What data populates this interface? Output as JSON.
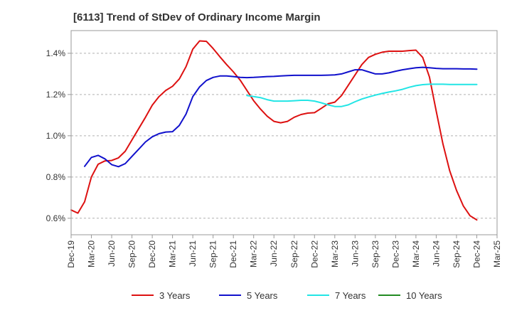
{
  "chart_data": {
    "type": "line",
    "title": "[6113]  Trend of StDev of Ordinary Income Margin",
    "xlabel": "",
    "ylabel": "",
    "x_tick_labels": [
      "Dec-19",
      "Mar-20",
      "Jun-20",
      "Sep-20",
      "Dec-20",
      "Mar-21",
      "Jun-21",
      "Sep-21",
      "Dec-21",
      "Mar-22",
      "Jun-22",
      "Sep-22",
      "Dec-22",
      "Mar-23",
      "Jun-23",
      "Sep-23",
      "Dec-23",
      "Mar-24",
      "Jun-24",
      "Sep-24",
      "Dec-24",
      "Mar-25"
    ],
    "y_tick_labels": [
      "0.6%",
      "0.8%",
      "1.0%",
      "1.2%",
      "1.4%"
    ],
    "y_ticks": [
      0.6,
      0.8,
      1.0,
      1.2,
      1.4
    ],
    "ylim": [
      0.52,
      1.51
    ],
    "grid": "horizontal-dashed",
    "legend_position": "bottom",
    "series": [
      {
        "name": "3 Years",
        "color": "#dd1111",
        "start_index": 0,
        "values": [
          0.64,
          0.625,
          0.68,
          0.8,
          0.862,
          0.878,
          0.88,
          0.893,
          0.925,
          0.98,
          1.035,
          1.09,
          1.148,
          1.19,
          1.22,
          1.24,
          1.275,
          1.335,
          1.42,
          1.46,
          1.458,
          1.423,
          1.383,
          1.345,
          1.31,
          1.27,
          1.22,
          1.17,
          1.13,
          1.095,
          1.07,
          1.063,
          1.07,
          1.09,
          1.103,
          1.11,
          1.112,
          1.133,
          1.155,
          1.163,
          1.195,
          1.245,
          1.295,
          1.345,
          1.38,
          1.395,
          1.405,
          1.41,
          1.41,
          1.41,
          1.413,
          1.415,
          1.38,
          1.285,
          1.12,
          0.96,
          0.83,
          0.735,
          0.66,
          0.612,
          0.592
        ]
      },
      {
        "name": "5 Years",
        "color": "#1111cc",
        "start_index": 2,
        "values": [
          0.852,
          0.895,
          0.905,
          0.888,
          0.86,
          0.85,
          0.865,
          0.9,
          0.935,
          0.97,
          0.995,
          1.01,
          1.018,
          1.02,
          1.05,
          1.105,
          1.19,
          1.237,
          1.268,
          1.283,
          1.29,
          1.29,
          1.287,
          1.283,
          1.282,
          1.283,
          1.285,
          1.287,
          1.288,
          1.29,
          1.292,
          1.293,
          1.293,
          1.293,
          1.293,
          1.293,
          1.294,
          1.295,
          1.3,
          1.31,
          1.32,
          1.32,
          1.31,
          1.3,
          1.3,
          1.305,
          1.313,
          1.32,
          1.325,
          1.33,
          1.332,
          1.33,
          1.327,
          1.325,
          1.325,
          1.325,
          1.324,
          1.324,
          1.323
        ]
      },
      {
        "name": "7 Years",
        "color": "#22e5e5",
        "start_index": 26,
        "values": [
          1.195,
          1.19,
          1.185,
          1.175,
          1.168,
          1.168,
          1.168,
          1.17,
          1.172,
          1.172,
          1.168,
          1.16,
          1.15,
          1.142,
          1.142,
          1.15,
          1.165,
          1.178,
          1.188,
          1.197,
          1.205,
          1.212,
          1.218,
          1.225,
          1.235,
          1.243,
          1.248,
          1.25,
          1.25,
          1.25,
          1.249,
          1.249,
          1.249,
          1.249,
          1.249
        ]
      },
      {
        "name": "10 Years",
        "color": "#228b22",
        "start_index": 0,
        "values": []
      }
    ]
  }
}
